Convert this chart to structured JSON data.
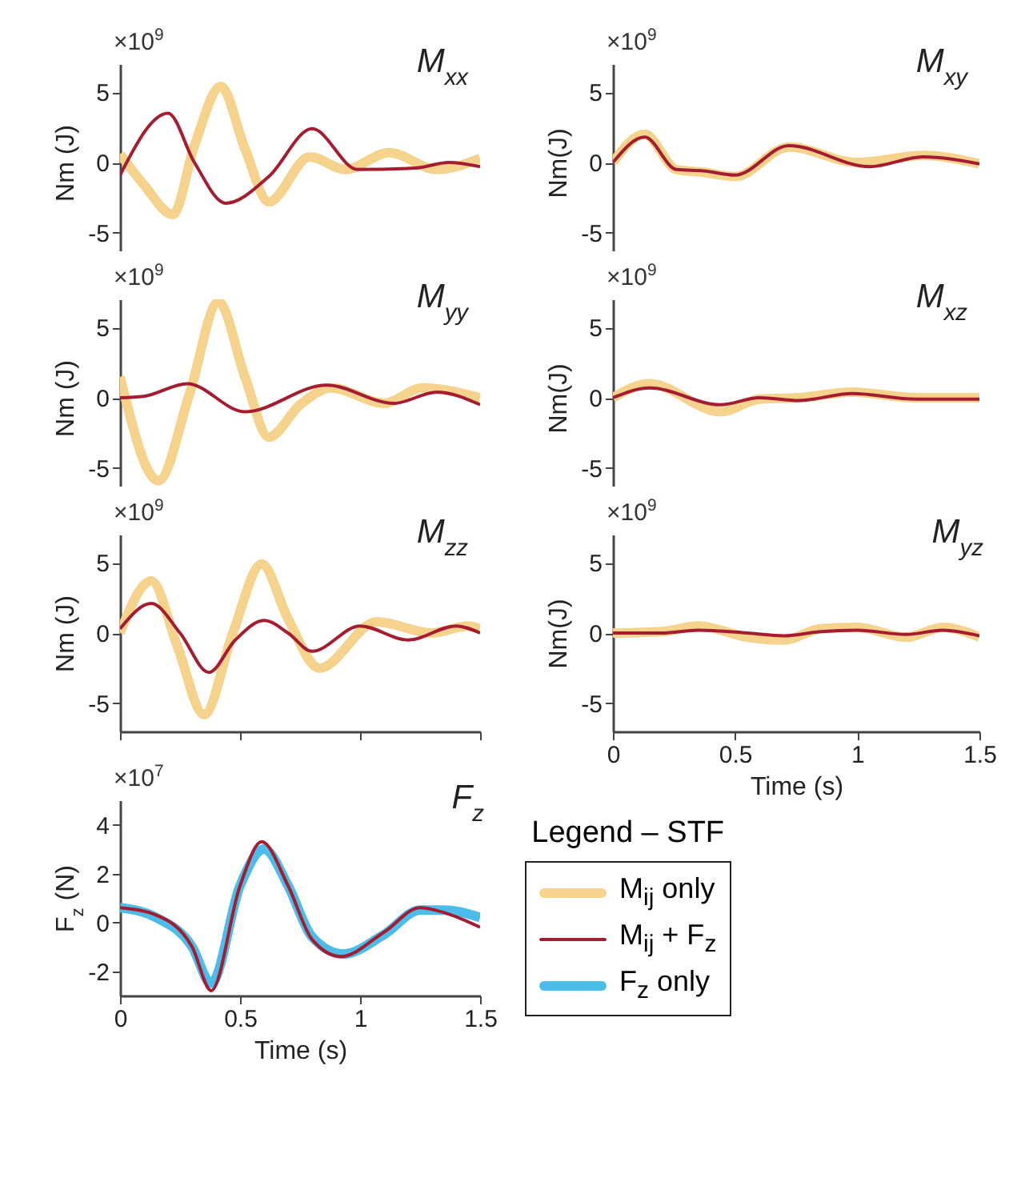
{
  "chart_data": [
    {
      "type": "line",
      "title": "M$_{xx}$",
      "ylabel": "Nm (J)",
      "legend": "bottom right",
      "legend_title": "Legend – STF",
      "annotations": [
        "×10$^{9}$"
      ],
      "xlim": [
        0,
        1.5
      ],
      "xticks": [
        0,
        0.5,
        1,
        1.5
      ],
      "ylim": [
        -7,
        7
      ],
      "yticks": [
        -5,
        0,
        5
      ],
      "tick_labels": "y",
      "series": [
        {
          "name": "M$_{ij}$ only",
          "color": "#f6d38c",
          "x": [
            0,
            0.1,
            0.22,
            0.31,
            0.42,
            0.52,
            0.62,
            0.79,
            0.94,
            1.12,
            1.32,
            1.5
          ],
          "values": [
            0.6,
            -1.6,
            -3.7,
            1.2,
            5.4,
            1.0,
            -2.8,
            0.4,
            -0.5,
            0.7,
            -0.5,
            0.3
          ]
        },
        {
          "name": "M$_{ij}$ + F$_{z}$",
          "color": "#a51c30",
          "x": [
            0,
            0.2,
            0.31,
            0.44,
            0.62,
            0.8,
            0.99,
            1.23,
            1.37,
            1.5
          ],
          "values": [
            -0.9,
            3.5,
            0,
            -2.9,
            -1.0,
            2.4,
            -0.5,
            -0.4,
            0,
            -0.3
          ]
        }
      ]
    },
    {
      "type": "line",
      "title": "M$_{xy}$",
      "ylabel": "Nm(J)",
      "annotations": [
        "×10$^{9}$"
      ],
      "xlim": [
        0,
        1.5
      ],
      "xticks": [
        0,
        0.5,
        1,
        1.5
      ],
      "ylim": [
        -7,
        7
      ],
      "yticks": [
        -5,
        0,
        5
      ],
      "tick_labels": "y",
      "series": [
        {
          "name": "M$_{ij}$ only",
          "color": "#f6d38c",
          "x": [
            0,
            0.13,
            0.26,
            0.37,
            0.5,
            0.72,
            1.0,
            1.27,
            1.5
          ],
          "values": [
            0,
            2.0,
            -0.5,
            -0.7,
            -1.0,
            1.1,
            0,
            0.5,
            -0.1
          ]
        },
        {
          "name": "M$_{ij}$ + F$_{z}$",
          "color": "#a51c30",
          "x": [
            0,
            0.13,
            0.26,
            0.37,
            0.5,
            0.72,
            1.05,
            1.27,
            1.5
          ],
          "values": [
            0,
            1.8,
            -0.5,
            -0.6,
            -0.9,
            1.2,
            -0.3,
            0.4,
            -0.1
          ]
        }
      ]
    },
    {
      "type": "line",
      "title": "M$_{yy}$",
      "ylabel": "Nm (J)",
      "annotations": [
        "×10$^{9}$"
      ],
      "xlim": [
        0,
        1.5
      ],
      "xticks": [
        0,
        0.5,
        1,
        1.5
      ],
      "ylim": [
        -7,
        7
      ],
      "yticks": [
        -5,
        0,
        5
      ],
      "tick_labels": "y",
      "series": [
        {
          "name": "M$_{ij}$ only",
          "color": "#f6d38c",
          "x": [
            0,
            0.16,
            0.29,
            0.41,
            0.52,
            0.62,
            0.75,
            0.88,
            1.1,
            1.26,
            1.5
          ],
          "values": [
            1.5,
            -5.9,
            0.3,
            6.8,
            1.5,
            -2.8,
            -0.5,
            0.7,
            -0.4,
            0.7,
            0
          ]
        },
        {
          "name": "M$_{ij}$ + F$_{z}$",
          "color": "#a51c30",
          "x": [
            0,
            0.1,
            0.28,
            0.52,
            0.86,
            1.14,
            1.32,
            1.5
          ],
          "values": [
            0,
            0.1,
            1.0,
            -1.0,
            0.9,
            -0.4,
            0.4,
            -0.5
          ]
        }
      ]
    },
    {
      "type": "line",
      "title": "M$_{xz}$",
      "ylabel": "Nm(J)",
      "annotations": [
        "×10$^{9}$"
      ],
      "xlim": [
        0,
        1.5
      ],
      "xticks": [
        0,
        0.5,
        1,
        1.5
      ],
      "ylim": [
        -7,
        7
      ],
      "yticks": [
        -5,
        0,
        5
      ],
      "tick_labels": "y",
      "series": [
        {
          "name": "M$_{ij}$ only",
          "color": "#f6d38c",
          "x": [
            0,
            0.15,
            0.44,
            0.6,
            0.76,
            0.98,
            1.24,
            1.5
          ],
          "values": [
            0,
            1.0,
            -1.0,
            -0.1,
            0,
            0.4,
            0,
            0
          ]
        },
        {
          "name": "M$_{ij}$ + F$_{z}$",
          "color": "#a51c30",
          "x": [
            0,
            0.15,
            0.44,
            0.6,
            0.76,
            0.98,
            1.24,
            1.5
          ],
          "values": [
            0,
            0.7,
            -0.5,
            0,
            -0.2,
            0.3,
            -0.1,
            -0.1
          ]
        }
      ]
    },
    {
      "type": "line",
      "title": "M$_{zz}$",
      "ylabel": "Nm (J)",
      "annotations": [
        "×10$^{9}$"
      ],
      "xlim": [
        0,
        1.5
      ],
      "xticks": [
        0,
        0.5,
        1,
        1.5
      ],
      "ylim": [
        -7,
        7
      ],
      "yticks": [
        -5,
        0,
        5
      ],
      "tick_labels": "y",
      "series": [
        {
          "name": "M$_{ij}$ only",
          "color": "#f6d38c",
          "x": [
            0,
            0.13,
            0.24,
            0.35,
            0.47,
            0.59,
            0.7,
            0.83,
            1.07,
            1.3,
            1.45,
            1.5
          ],
          "values": [
            0,
            3.7,
            -1.0,
            -5.8,
            0,
            4.9,
            1.0,
            -2.5,
            0.8,
            0,
            0.5,
            0.3
          ]
        },
        {
          "name": "M$_{ij}$ + F$_{z}$",
          "color": "#a51c30",
          "x": [
            0,
            0.13,
            0.25,
            0.37,
            0.48,
            0.6,
            0.7,
            0.8,
            1.0,
            1.2,
            1.4,
            1.5
          ],
          "values": [
            0.3,
            2.1,
            0,
            -2.8,
            -0.5,
            0.9,
            0,
            -1.3,
            0.5,
            -0.5,
            0.5,
            0
          ]
        }
      ]
    },
    {
      "type": "line",
      "title": "M$_{yz}$",
      "ylabel": "Nm(J)",
      "xlabel": "Time (s)",
      "annotations": [
        "×10$^{9}$"
      ],
      "xlim": [
        0,
        1.5
      ],
      "xticks": [
        0,
        0.5,
        1,
        1.5
      ],
      "ylim": [
        -7,
        7
      ],
      "yticks": [
        -5,
        0,
        5
      ],
      "series": [
        {
          "name": "M$_{ij}$ only",
          "color": "#f6d38c",
          "x": [
            0,
            0.2,
            0.35,
            0.55,
            0.7,
            0.85,
            1.0,
            1.2,
            1.35,
            1.5
          ],
          "values": [
            0,
            0.1,
            0.5,
            -0.3,
            -0.5,
            0.3,
            0.4,
            -0.3,
            0.4,
            -0.3
          ]
        },
        {
          "name": "M$_{ij}$ + F$_{z}$",
          "color": "#a51c30",
          "x": [
            0,
            0.2,
            0.35,
            0.55,
            0.7,
            0.85,
            1.0,
            1.2,
            1.35,
            1.5
          ],
          "values": [
            0,
            0,
            0.2,
            0,
            -0.2,
            0.1,
            0.2,
            -0.1,
            0.2,
            -0.2
          ]
        }
      ]
    },
    {
      "type": "line",
      "title": "F$_{z}$",
      "ylabel": "F$_{z}$ (N)",
      "xlabel": "Time (s)",
      "annotations": [
        "×10$^{7}$"
      ],
      "xlim": [
        0,
        1.5
      ],
      "xticks": [
        0,
        0.5,
        1,
        1.5
      ],
      "ylim": [
        -3,
        5
      ],
      "yticks": [
        -2,
        0,
        2,
        4
      ],
      "series": [
        {
          "name": "F$_{z}$ only",
          "color": "#4cbce9",
          "x": [
            0,
            0.15,
            0.3,
            0.38,
            0.5,
            0.6,
            0.7,
            0.8,
            0.93,
            1.1,
            1.25,
            1.35,
            1.5
          ],
          "values": [
            0.6,
            0.2,
            -1.0,
            -2.5,
            1.5,
            3.0,
            1.5,
            -0.6,
            -1.3,
            -0.5,
            0.5,
            0.5,
            0.2
          ]
        },
        {
          "name": "M$_{ij}$ + F$_{z}$",
          "color": "#a51c30",
          "x": [
            0,
            0.15,
            0.3,
            0.38,
            0.5,
            0.59,
            0.7,
            0.8,
            0.92,
            1.1,
            1.25,
            1.35,
            1.5
          ],
          "values": [
            0.6,
            0.3,
            -1.0,
            -2.8,
            1.5,
            3.3,
            1.5,
            -0.7,
            -1.4,
            -0.4,
            0.6,
            0.4,
            -0.2
          ]
        }
      ]
    }
  ]
}
